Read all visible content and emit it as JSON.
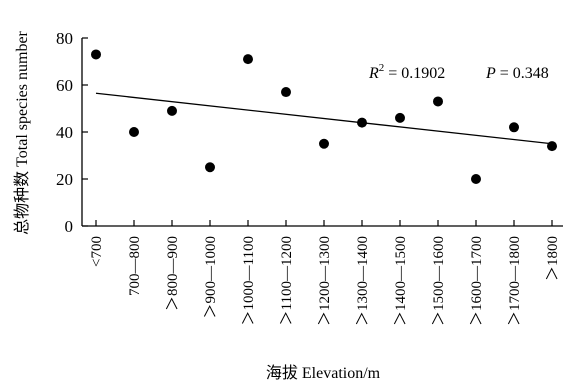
{
  "chart_data": {
    "type": "scatter",
    "xlabel": "海拔 Elevation/m",
    "ylabel": "总物种数 Total species number",
    "ylim": [
      0,
      80
    ],
    "yticks": [
      0,
      20,
      40,
      60,
      80
    ],
    "categories": [
      "<700",
      "700—800",
      "＞800—900",
      "＞900—1000",
      "＞1000—1100",
      "＞1100—1200",
      "＞1200—1300",
      "＞1300—1400",
      "＞1400—1500",
      "＞1500—1600",
      "＞1600—1700",
      "＞1700—1800",
      "＞1800"
    ],
    "values": [
      73,
      40,
      49,
      25,
      71,
      57,
      35,
      44,
      46,
      53,
      20,
      42,
      34
    ],
    "trendline": {
      "type": "linear",
      "start": 56.5,
      "end": 35
    },
    "annotations": {
      "r2_label": "R",
      "r2_sup": "2",
      "r2_value": " = 0.1902",
      "p_label": "P",
      "p_value": " = 0.348"
    },
    "grid": false,
    "legend": "none"
  }
}
